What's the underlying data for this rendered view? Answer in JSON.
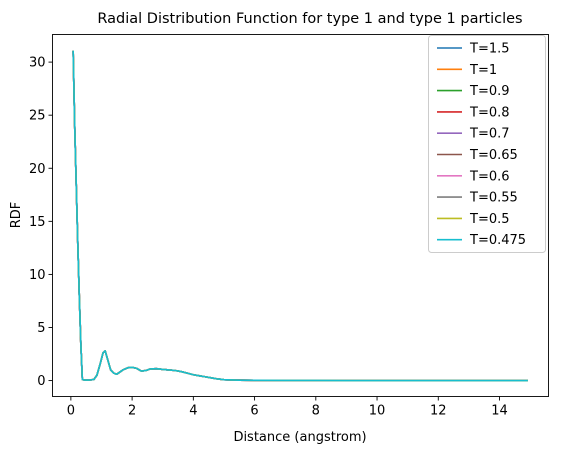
{
  "chart_data": {
    "type": "line",
    "title": "Radial Distribution Function for type 1 and type 1 particles",
    "xlabel": "Distance (angstrom)",
    "ylabel": "RDF",
    "xlim": [
      -0.6,
      15.6
    ],
    "ylim": [
      -1.5,
      32.6
    ],
    "xticks": [
      0,
      2,
      4,
      6,
      8,
      10,
      12,
      14
    ],
    "yticks": [
      0,
      5,
      10,
      15,
      20,
      25,
      30
    ],
    "grid": false,
    "legend_position": "upper-right",
    "x": [
      0.075,
      0.125,
      0.175,
      0.225,
      0.275,
      0.325,
      0.375,
      0.45,
      0.6,
      0.75,
      0.85,
      0.95,
      1.05,
      1.12,
      1.2,
      1.3,
      1.4,
      1.5,
      1.6,
      1.7,
      1.85,
      2.0,
      2.15,
      2.3,
      2.45,
      2.6,
      2.8,
      3.0,
      3.2,
      3.4,
      3.6,
      3.8,
      4.0,
      4.2,
      4.4,
      4.6,
      4.8,
      5.0,
      5.5,
      6.0,
      7.0,
      8.0,
      9.0,
      10.0,
      11.0,
      12.0,
      13.0,
      14.0,
      14.9
    ],
    "series": [
      {
        "name": "T=1.5",
        "color": "#1f77b4",
        "values": [
          31.0,
          24.0,
          18.5,
          13.0,
          8.0,
          3.5,
          0.1,
          0.05,
          0.05,
          0.1,
          0.5,
          1.5,
          2.6,
          2.8,
          2.0,
          1.0,
          0.7,
          0.6,
          0.8,
          1.0,
          1.2,
          1.25,
          1.15,
          0.9,
          0.95,
          1.1,
          1.12,
          1.05,
          1.0,
          0.95,
          0.85,
          0.7,
          0.55,
          0.45,
          0.35,
          0.25,
          0.15,
          0.08,
          0.04,
          0.02,
          0.01,
          0.01,
          0.0,
          0.0,
          0.0,
          0.0,
          0.0,
          0.0,
          0.0
        ]
      },
      {
        "name": "T=1",
        "color": "#ff7f0e",
        "values": [
          31.0,
          24.0,
          18.5,
          13.0,
          8.0,
          3.5,
          0.1,
          0.05,
          0.05,
          0.1,
          0.5,
          1.5,
          2.6,
          2.8,
          2.0,
          1.0,
          0.7,
          0.6,
          0.8,
          1.0,
          1.2,
          1.25,
          1.15,
          0.9,
          0.95,
          1.1,
          1.12,
          1.05,
          1.0,
          0.95,
          0.85,
          0.7,
          0.55,
          0.45,
          0.35,
          0.25,
          0.15,
          0.08,
          0.04,
          0.02,
          0.01,
          0.01,
          0.0,
          0.0,
          0.0,
          0.0,
          0.0,
          0.0,
          0.0
        ]
      },
      {
        "name": "T=0.9",
        "color": "#2ca02c",
        "values": [
          31.0,
          24.0,
          18.5,
          13.0,
          8.0,
          3.5,
          0.1,
          0.05,
          0.05,
          0.1,
          0.5,
          1.5,
          2.6,
          2.8,
          2.0,
          1.0,
          0.7,
          0.6,
          0.8,
          1.0,
          1.2,
          1.25,
          1.15,
          0.9,
          0.95,
          1.1,
          1.12,
          1.05,
          1.0,
          0.95,
          0.85,
          0.7,
          0.55,
          0.45,
          0.35,
          0.25,
          0.15,
          0.08,
          0.04,
          0.02,
          0.01,
          0.01,
          0.0,
          0.0,
          0.0,
          0.0,
          0.0,
          0.0,
          0.0
        ]
      },
      {
        "name": "T=0.8",
        "color": "#d62728",
        "values": [
          31.0,
          24.0,
          18.5,
          13.0,
          8.0,
          3.5,
          0.1,
          0.05,
          0.05,
          0.1,
          0.5,
          1.5,
          2.6,
          2.8,
          2.0,
          1.0,
          0.7,
          0.6,
          0.8,
          1.0,
          1.2,
          1.25,
          1.15,
          0.9,
          0.95,
          1.1,
          1.12,
          1.05,
          1.0,
          0.95,
          0.85,
          0.7,
          0.55,
          0.45,
          0.35,
          0.25,
          0.15,
          0.08,
          0.04,
          0.02,
          0.01,
          0.01,
          0.0,
          0.0,
          0.0,
          0.0,
          0.0,
          0.0,
          0.0
        ]
      },
      {
        "name": "T=0.7",
        "color": "#9467bd",
        "values": [
          31.0,
          24.0,
          18.5,
          13.0,
          8.0,
          3.5,
          0.1,
          0.05,
          0.05,
          0.1,
          0.5,
          1.5,
          2.6,
          2.8,
          2.0,
          1.0,
          0.7,
          0.6,
          0.8,
          1.0,
          1.2,
          1.25,
          1.15,
          0.9,
          0.95,
          1.1,
          1.12,
          1.05,
          1.0,
          0.95,
          0.85,
          0.7,
          0.55,
          0.45,
          0.35,
          0.25,
          0.15,
          0.08,
          0.04,
          0.02,
          0.01,
          0.01,
          0.0,
          0.0,
          0.0,
          0.0,
          0.0,
          0.0,
          0.0
        ]
      },
      {
        "name": "T=0.65",
        "color": "#8c564b",
        "values": [
          31.0,
          24.0,
          18.5,
          13.0,
          8.0,
          3.5,
          0.1,
          0.05,
          0.05,
          0.1,
          0.5,
          1.5,
          2.6,
          2.8,
          2.0,
          1.0,
          0.7,
          0.6,
          0.8,
          1.0,
          1.2,
          1.25,
          1.15,
          0.9,
          0.95,
          1.1,
          1.12,
          1.05,
          1.0,
          0.95,
          0.85,
          0.7,
          0.55,
          0.45,
          0.35,
          0.25,
          0.15,
          0.08,
          0.04,
          0.02,
          0.01,
          0.01,
          0.0,
          0.0,
          0.0,
          0.0,
          0.0,
          0.0,
          0.0
        ]
      },
      {
        "name": "T=0.6",
        "color": "#e377c2",
        "values": [
          31.0,
          24.0,
          18.5,
          13.0,
          8.0,
          3.5,
          0.1,
          0.05,
          0.05,
          0.1,
          0.5,
          1.5,
          2.6,
          2.8,
          2.0,
          1.0,
          0.7,
          0.6,
          0.8,
          1.0,
          1.2,
          1.25,
          1.15,
          0.9,
          0.95,
          1.1,
          1.12,
          1.05,
          1.0,
          0.95,
          0.85,
          0.7,
          0.55,
          0.45,
          0.35,
          0.25,
          0.15,
          0.08,
          0.04,
          0.02,
          0.01,
          0.01,
          0.0,
          0.0,
          0.0,
          0.0,
          0.0,
          0.0,
          0.0
        ]
      },
      {
        "name": "T=0.55",
        "color": "#7f7f7f",
        "values": [
          31.0,
          24.0,
          18.5,
          13.0,
          8.0,
          3.5,
          0.1,
          0.05,
          0.05,
          0.1,
          0.5,
          1.5,
          2.6,
          2.8,
          2.0,
          1.0,
          0.7,
          0.6,
          0.8,
          1.0,
          1.2,
          1.25,
          1.15,
          0.9,
          0.95,
          1.1,
          1.12,
          1.05,
          1.0,
          0.95,
          0.85,
          0.7,
          0.55,
          0.45,
          0.35,
          0.25,
          0.15,
          0.08,
          0.04,
          0.02,
          0.01,
          0.01,
          0.0,
          0.0,
          0.0,
          0.0,
          0.0,
          0.0,
          0.0
        ]
      },
      {
        "name": "T=0.5",
        "color": "#bcbd22",
        "values": [
          31.0,
          24.0,
          18.5,
          13.0,
          8.0,
          3.5,
          0.1,
          0.05,
          0.05,
          0.1,
          0.5,
          1.5,
          2.6,
          2.8,
          2.0,
          1.0,
          0.7,
          0.6,
          0.8,
          1.0,
          1.2,
          1.25,
          1.15,
          0.9,
          0.95,
          1.1,
          1.12,
          1.05,
          1.0,
          0.95,
          0.85,
          0.7,
          0.55,
          0.45,
          0.35,
          0.25,
          0.15,
          0.08,
          0.04,
          0.02,
          0.01,
          0.01,
          0.0,
          0.0,
          0.0,
          0.0,
          0.0,
          0.0,
          0.0
        ]
      },
      {
        "name": "T=0.475",
        "color": "#17becf",
        "values": [
          31.0,
          24.0,
          18.5,
          13.0,
          8.0,
          3.5,
          0.1,
          0.05,
          0.05,
          0.1,
          0.5,
          1.5,
          2.6,
          2.8,
          2.0,
          1.0,
          0.7,
          0.6,
          0.8,
          1.0,
          1.2,
          1.25,
          1.15,
          0.9,
          0.95,
          1.1,
          1.12,
          1.05,
          1.0,
          0.95,
          0.85,
          0.7,
          0.55,
          0.45,
          0.35,
          0.25,
          0.15,
          0.08,
          0.04,
          0.02,
          0.01,
          0.01,
          0.0,
          0.0,
          0.0,
          0.0,
          0.0,
          0.0,
          0.0
        ]
      }
    ]
  }
}
